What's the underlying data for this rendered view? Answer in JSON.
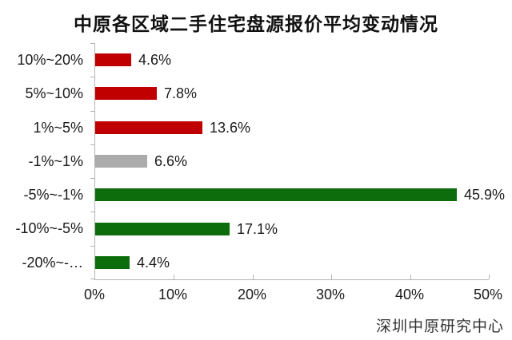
{
  "title": "中原各区域二手住宅盘源报价平均变动情况",
  "footer": "深圳中原研究中心",
  "chart_data": {
    "type": "bar",
    "orientation": "horizontal",
    "title": "中原各区域二手住宅盘源报价平均变动情况",
    "categories": [
      "10%~20%",
      "5%~10%",
      "1%~5%",
      "-1%~1%",
      "-5%~-1%",
      "-10%~-5%",
      "-20%~-…"
    ],
    "values": [
      4.6,
      7.8,
      13.6,
      6.6,
      45.9,
      17.1,
      4.4
    ],
    "value_labels": [
      "4.6%",
      "7.8%",
      "13.6%",
      "6.6%",
      "45.9%",
      "17.1%",
      "4.4%"
    ],
    "bar_colors": [
      "red",
      "red",
      "red",
      "gray",
      "green",
      "green",
      "green"
    ],
    "colors": {
      "red": "#C00000",
      "gray": "#ABABAB",
      "green": "#0D6D0D"
    },
    "xlabel": "",
    "ylabel": "",
    "xlim": [
      0,
      50
    ],
    "x_ticks": [
      "0%",
      "10%",
      "20%",
      "30%",
      "40%",
      "50%"
    ],
    "x_tick_values": [
      0,
      10,
      20,
      30,
      40,
      50
    ],
    "grid": "off",
    "legend": "none",
    "source_note": "深圳中原研究中心"
  }
}
